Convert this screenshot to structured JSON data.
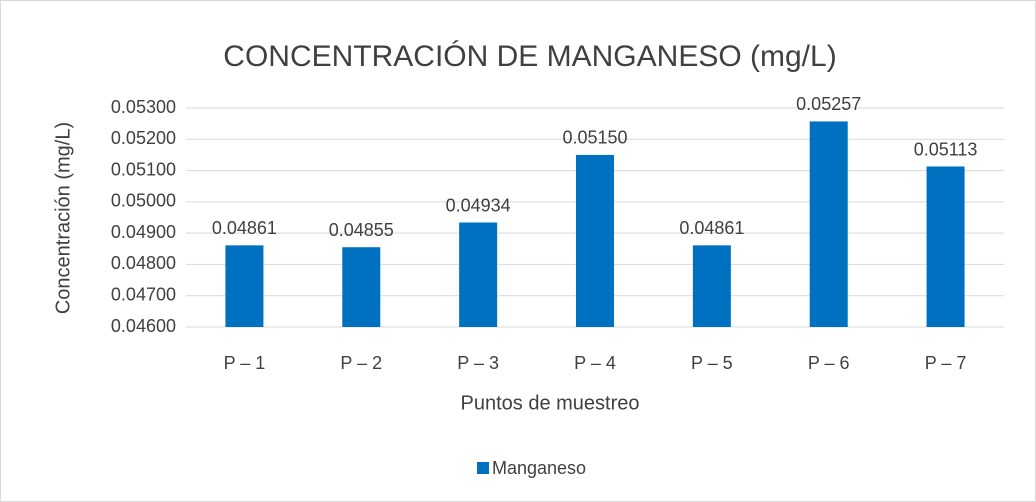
{
  "chart_data": {
    "type": "bar",
    "title": "CONCENTRACIÓN DE MANGANESO (mg/L)",
    "x_label": "Puntos de muestreo",
    "y_label": "Concentración (mg/L)",
    "categories": [
      "P – 1",
      "P – 2",
      "P – 3",
      "P – 4",
      "P – 5",
      "P – 6",
      "P – 7"
    ],
    "series": [
      {
        "name": "Manganeso",
        "color": "#0070c0",
        "values": [
          0.04861,
          0.04855,
          0.04934,
          0.0515,
          0.04861,
          0.05257,
          0.05113
        ],
        "value_labels": [
          "0.04861",
          "0.04855",
          "0.04934",
          "0.05150",
          "0.04861",
          "0.05257",
          "0.05113"
        ]
      }
    ],
    "ylim": [
      0.046,
      0.053
    ],
    "yticks": [
      {
        "value": 0.046,
        "label": "0.04600"
      },
      {
        "value": 0.047,
        "label": "0.04700"
      },
      {
        "value": 0.048,
        "label": "0.04800"
      },
      {
        "value": 0.049,
        "label": "0.04900"
      },
      {
        "value": 0.05,
        "label": "0.05000"
      },
      {
        "value": 0.051,
        "label": "0.05100"
      },
      {
        "value": 0.052,
        "label": "0.05200"
      },
      {
        "value": 0.053,
        "label": "0.05300"
      }
    ],
    "grid": true,
    "legend": "bottom"
  }
}
